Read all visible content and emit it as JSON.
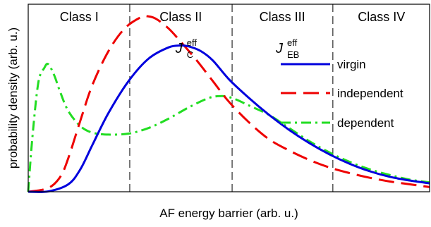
{
  "chart_data": {
    "type": "line",
    "title": "",
    "xlabel": "AF energy barrier (arb. u.)",
    "ylabel": "probability density (arb. u.)",
    "xlim": [
      0,
      1
    ],
    "ylim": [
      0,
      1
    ],
    "ticks": "none",
    "grid": false,
    "class_boundaries": [
      0.253,
      0.508,
      0.759
    ],
    "classes": [
      {
        "label": "Class I",
        "center": 0.127
      },
      {
        "label": "Class II",
        "center": 0.38
      },
      {
        "label": "Class III",
        "center": 0.633
      },
      {
        "label": "Class IV",
        "center": 0.88
      }
    ],
    "annotations": [
      {
        "symbol": "J",
        "sup": "eff",
        "sub": "C",
        "x": 0.395,
        "y": 0.74
      },
      {
        "symbol": "J",
        "sup": "eff",
        "sub": "EB",
        "x": 0.645,
        "y": 0.74
      }
    ],
    "legend": {
      "placement": "right"
    },
    "series": [
      {
        "name": "virgin",
        "color": "#0000dd",
        "dash": "solid",
        "x": [
          0.0,
          0.05,
          0.1,
          0.13,
          0.16,
          0.2,
          0.25,
          0.3,
          0.35,
          0.38,
          0.4,
          0.43,
          0.46,
          0.5,
          0.55,
          0.6,
          0.65,
          0.7,
          0.75,
          0.8,
          0.85,
          0.9,
          0.95,
          1.0
        ],
        "y": [
          0.0,
          0.002,
          0.04,
          0.12,
          0.25,
          0.42,
          0.59,
          0.71,
          0.77,
          0.78,
          0.775,
          0.75,
          0.7,
          0.6,
          0.5,
          0.41,
          0.33,
          0.26,
          0.2,
          0.15,
          0.11,
          0.08,
          0.06,
          0.045
        ]
      },
      {
        "name": "independent",
        "color": "#ee0000",
        "dash": "long-dash",
        "x": [
          0.0,
          0.05,
          0.08,
          0.1,
          0.13,
          0.16,
          0.2,
          0.24,
          0.28,
          0.3,
          0.32,
          0.35,
          0.38,
          0.42,
          0.46,
          0.5,
          0.55,
          0.6,
          0.65,
          0.7,
          0.75,
          0.8,
          0.85,
          0.9,
          0.95,
          1.0
        ],
        "y": [
          0.0,
          0.02,
          0.08,
          0.18,
          0.38,
          0.57,
          0.75,
          0.87,
          0.93,
          0.935,
          0.92,
          0.87,
          0.8,
          0.7,
          0.59,
          0.48,
          0.37,
          0.28,
          0.22,
          0.17,
          0.13,
          0.1,
          0.075,
          0.055,
          0.04,
          0.025
        ]
      },
      {
        "name": "dependent",
        "color": "#22dd22",
        "dash": "dash-dot",
        "x": [
          0.0,
          0.01,
          0.025,
          0.04,
          0.05,
          0.065,
          0.08,
          0.1,
          0.13,
          0.16,
          0.2,
          0.25,
          0.3,
          0.35,
          0.4,
          0.45,
          0.48,
          0.5,
          0.52,
          0.55,
          0.6,
          0.65,
          0.7,
          0.75,
          0.8,
          0.85,
          0.9,
          0.95,
          1.0
        ],
        "y": [
          0.0,
          0.28,
          0.58,
          0.66,
          0.68,
          0.62,
          0.53,
          0.43,
          0.35,
          0.315,
          0.305,
          0.31,
          0.34,
          0.39,
          0.45,
          0.5,
          0.51,
          0.505,
          0.49,
          0.46,
          0.41,
          0.34,
          0.27,
          0.21,
          0.16,
          0.12,
          0.09,
          0.065,
          0.05
        ]
      }
    ]
  }
}
